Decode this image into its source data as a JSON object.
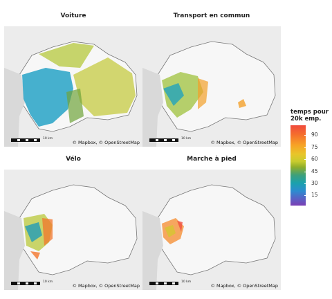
{
  "panels": [
    {
      "title": "Voiture",
      "mode": "car"
    },
    {
      "title": "Transport en commun",
      "mode": "transit"
    },
    {
      "title": "Vélo",
      "mode": "bike"
    },
    {
      "title": "Marche à pied",
      "mode": "walk"
    }
  ],
  "scale_label": "10 km",
  "attribution": "© Mapbox, © OpenStreetMap",
  "legend": {
    "title": "temps pour 20k emp.",
    "ticks": [
      "90",
      "75",
      "60",
      "45",
      "30",
      "15"
    ],
    "colors": [
      "#f04a3c",
      "#f7a426",
      "#c8cc2e",
      "#3ea07a",
      "#1aa1ad",
      "#5c5ec4",
      "#7b3fb5"
    ]
  }
}
